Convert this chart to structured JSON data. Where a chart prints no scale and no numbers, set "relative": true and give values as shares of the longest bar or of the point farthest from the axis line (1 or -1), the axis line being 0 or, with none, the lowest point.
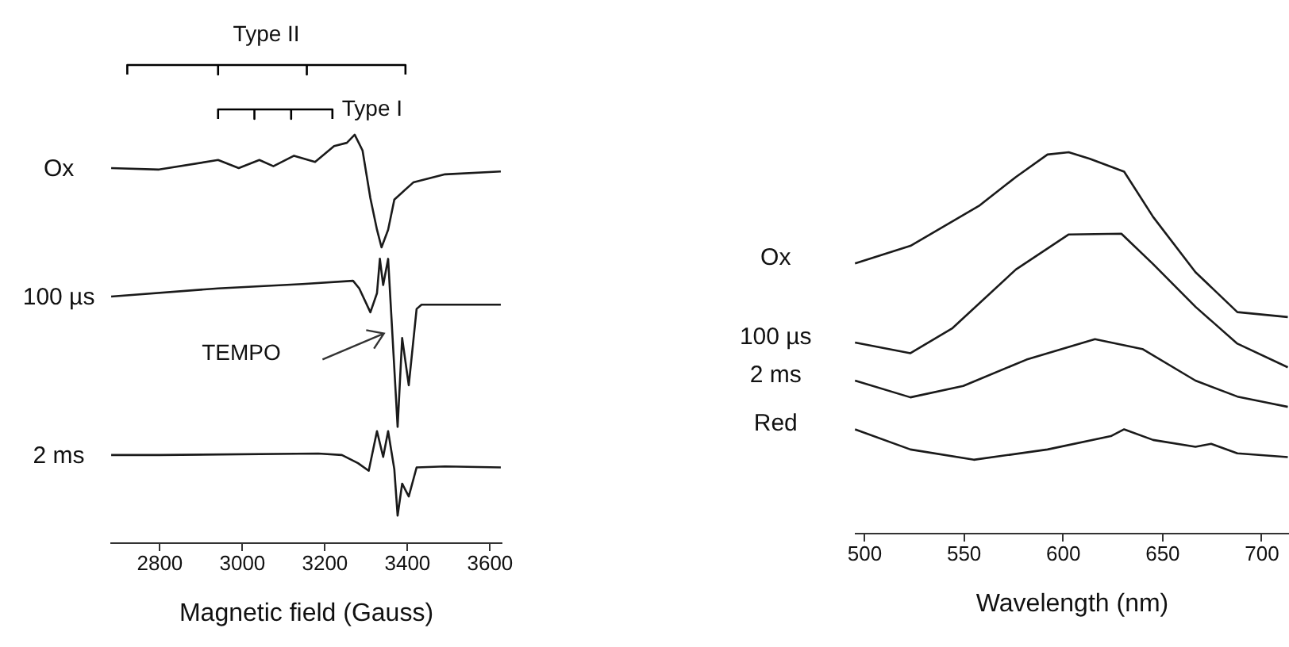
{
  "chart_data": [
    {
      "type": "line",
      "relative": true,
      "xlabel": "Magnetic field (Gauss)",
      "xlim": [
        2680,
        3630
      ],
      "xticks": [
        2800,
        3000,
        3200,
        3400,
        3600
      ],
      "annotations": [
        {
          "text": "Type II",
          "x": 3060,
          "y": 1
        },
        {
          "text": "Type I",
          "x": 3220,
          "y": 0.907
        },
        "TEMPO"
      ],
      "series": [
        {
          "name": "Ox",
          "color": "#1a1a1a",
          "x": [
            2684,
            2800,
            2943,
            2993,
            3043,
            3077,
            3127,
            3178,
            3224,
            3255,
            3274,
            3293,
            3312,
            3328,
            3339,
            3355,
            3370,
            3416,
            3493,
            3628
          ],
          "values": [
            0.784,
            0.781,
            0.801,
            0.784,
            0.801,
            0.788,
            0.81,
            0.797,
            0.83,
            0.837,
            0.854,
            0.821,
            0.721,
            0.655,
            0.618,
            0.655,
            0.718,
            0.754,
            0.771,
            0.777
          ]
        },
        {
          "name": "100 µs",
          "color": "#1a1a1a",
          "x": [
            2684,
            2943,
            3147,
            3270,
            3285,
            3312,
            3328,
            3335,
            3343,
            3355,
            3378,
            3389,
            3405,
            3424,
            3436,
            3493,
            3628
          ],
          "values": [
            0.515,
            0.532,
            0.541,
            0.548,
            0.532,
            0.482,
            0.522,
            0.594,
            0.539,
            0.594,
            0.242,
            0.428,
            0.329,
            0.489,
            0.498,
            0.498,
            0.498
          ]
        },
        {
          "name": "2 ms",
          "color": "#1a1a1a",
          "x": [
            2684,
            2800,
            3186,
            3243,
            3282,
            3308,
            3328,
            3343,
            3355,
            3370,
            3378,
            3389,
            3405,
            3424,
            3493,
            3628
          ],
          "values": [
            0.183,
            0.183,
            0.186,
            0.183,
            0.166,
            0.15,
            0.233,
            0.179,
            0.233,
            0.153,
            0.056,
            0.123,
            0.096,
            0.157,
            0.159,
            0.157
          ]
        },
        {
          "color": "#000000",
          "x": [
            2723,
            2723,
            2943,
            2943,
            2943,
            3158,
            3158,
            3158,
            3397,
            3397
          ],
          "values": [
            0.98,
            1,
            1,
            0.98,
            1,
            1,
            0.98,
            1,
            1,
            0.98
          ]
        },
        {
          "color": "#000000",
          "x": [
            2943,
            2943,
            3031,
            3031,
            3031,
            3120,
            3120,
            3120,
            3220,
            3220
          ],
          "values": [
            0.887,
            0.907,
            0.907,
            0.887,
            0.907,
            0.907,
            0.887,
            0.907,
            0.907,
            0.887
          ]
        }
      ]
    },
    {
      "type": "line",
      "relative": true,
      "xlabel": "Wavelength (nm)",
      "xlim": [
        495,
        714
      ],
      "xticks": [
        500,
        550,
        600,
        650,
        700
      ],
      "series": [
        {
          "name": "Ox",
          "color": "#1a1a1a",
          "x": [
            495.5,
            523.4,
            557.9,
            576.5,
            592.4,
            603.1,
            613.7,
            631.0,
            645.6,
            666.9,
            688.0,
            713.4
          ],
          "values": [
            0.708,
            0.754,
            0.859,
            0.935,
            0.994,
            1,
            0.983,
            0.949,
            0.83,
            0.685,
            0.58,
            0.567
          ]
        },
        {
          "name": "100 µs",
          "color": "#1a1a1a",
          "x": [
            495.5,
            523.4,
            544.6,
            576.5,
            603.1,
            629.6,
            645.6,
            666.9,
            688.0,
            713.4
          ],
          "values": [
            0.5,
            0.472,
            0.538,
            0.692,
            0.784,
            0.786,
            0.706,
            0.594,
            0.497,
            0.435
          ]
        },
        {
          "name": "2 ms",
          "color": "#1a1a1a",
          "x": [
            495.5,
            523.4,
            550,
            581.8,
            616.3,
            640.2,
            666.9,
            688,
            713.4
          ],
          "values": [
            0.4,
            0.356,
            0.386,
            0.455,
            0.509,
            0.483,
            0.4,
            0.358,
            0.331
          ]
        },
        {
          "name": "Red",
          "color": "#1a1a1a",
          "x": [
            495.5,
            523.4,
            555.3,
            592.4,
            624.3,
            631.0,
            645.6,
            666.9,
            674.8,
            688.0,
            713.4
          ],
          "values": [
            0.272,
            0.219,
            0.192,
            0.219,
            0.254,
            0.272,
            0.244,
            0.226,
            0.234,
            0.209,
            0.199
          ]
        }
      ]
    }
  ]
}
